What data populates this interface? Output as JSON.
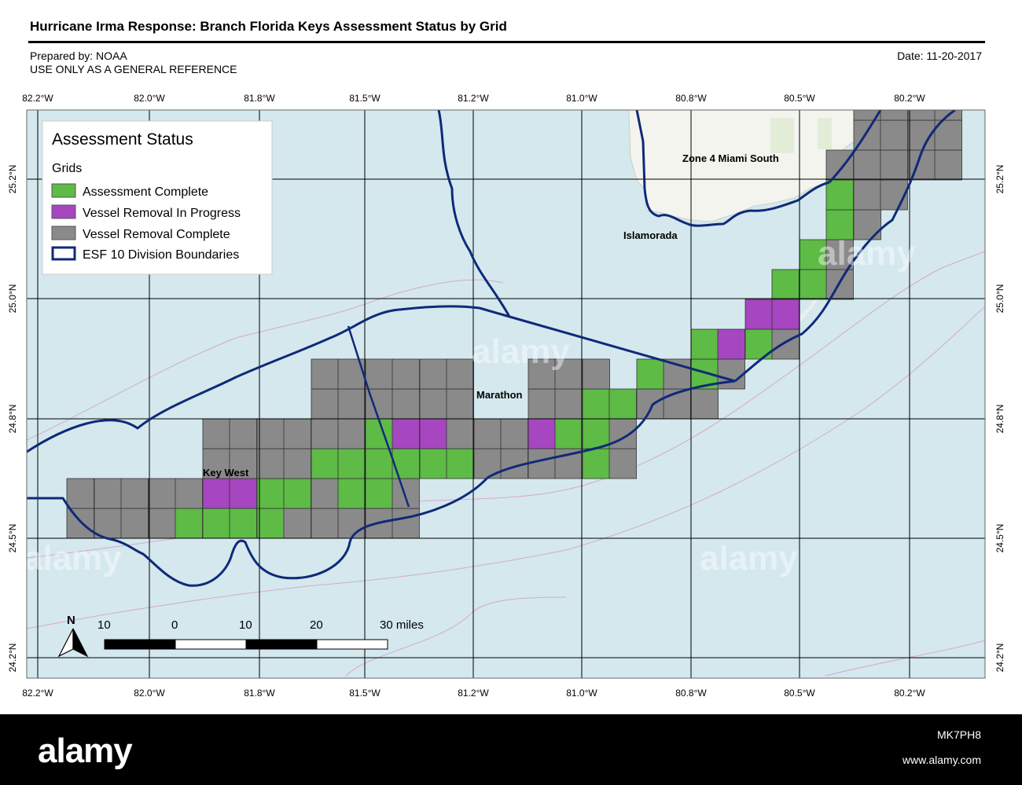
{
  "header": {
    "title": "Hurricane Irma Response: Branch Florida Keys Assessment Status by Grid",
    "prepared_by": "Prepared by: NOAA",
    "usage_note": "USE ONLY AS A GENERAL REFERENCE",
    "date": "Date: 11-20-2017"
  },
  "map": {
    "longitude_ticks": [
      "82.2°W",
      "82.0°W",
      "81.8°W",
      "81.5°W",
      "81.2°W",
      "81.0°W",
      "80.8°W",
      "80.5°W",
      "80.2°W"
    ],
    "latitude_ticks": [
      "25.2°N",
      "25.0°N",
      "24.8°N",
      "24.5°N",
      "24.2°N"
    ],
    "places": {
      "zone4": "Zone 4 Miami South",
      "islamorada": "Islamorada",
      "marathon": "Marathon",
      "key_west": "Key West"
    },
    "colors": {
      "water": "#d4e8ee",
      "land": "#f4f4ef",
      "assessment_complete": "#5dbb46",
      "vessel_removal_in_progress": "#a646c0",
      "vessel_removal_complete": "#8a8a8a",
      "boundary": "#0f2a78"
    }
  },
  "legend": {
    "title": "Assessment Status",
    "subtitle": "Grids",
    "items": [
      {
        "label": "Assessment Complete",
        "color": "#5dbb46"
      },
      {
        "label": "Vessel Removal In Progress",
        "color": "#a646c0"
      },
      {
        "label": "Vessel Removal Complete",
        "color": "#8a8a8a"
      },
      {
        "label": "ESF 10 Division Boundaries",
        "color": "#0f2a78"
      }
    ]
  },
  "scale_bar": {
    "north_label": "N",
    "labels": [
      "10",
      "0",
      "10",
      "20",
      "30 miles"
    ]
  },
  "watermark": {
    "text": "alamy",
    "image_id": "MK7PH8",
    "url": "www.alamy.com"
  }
}
